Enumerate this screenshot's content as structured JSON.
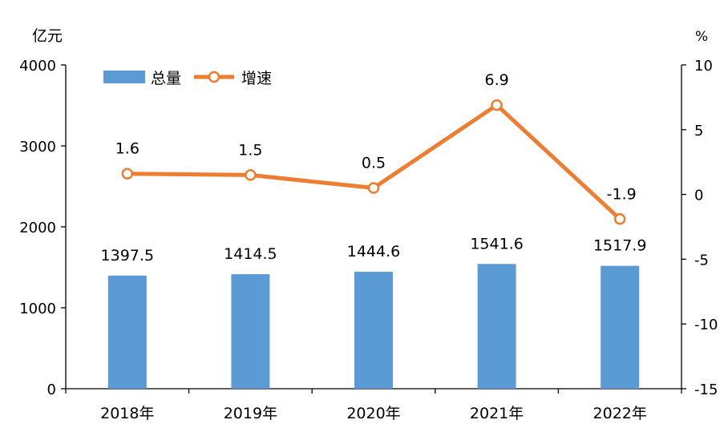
{
  "chart_data": {
    "type": "bar+line",
    "categories": [
      "2018年",
      "2019年",
      "2020年",
      "2021年",
      "2022年"
    ],
    "series": [
      {
        "name": "总量",
        "type": "bar",
        "axis": "left",
        "values": [
          1397.5,
          1414.5,
          1444.6,
          1541.6,
          1517.9
        ]
      },
      {
        "name": "增速",
        "type": "line",
        "axis": "right",
        "values": [
          1.6,
          1.5,
          0.5,
          6.9,
          -1.9
        ]
      }
    ],
    "data_labels": {
      "bars": [
        "1397.5",
        "1414.5",
        "1444.6",
        "1541.6",
        "1517.9"
      ],
      "line": [
        "1.6",
        "1.5",
        "0.5",
        "6.9",
        "-1.9"
      ]
    },
    "y_left": {
      "unit": "亿元",
      "lim": [
        0,
        4000
      ],
      "ticks": [
        0,
        1000,
        2000,
        3000,
        4000
      ]
    },
    "y_right": {
      "unit": "%",
      "lim": [
        -15,
        10
      ],
      "ticks": [
        -15,
        -10,
        -5,
        0,
        5,
        10
      ]
    },
    "legend": {
      "position": "top-left",
      "items": [
        "总量",
        "增速"
      ]
    },
    "grid": false,
    "colors": {
      "bar": "#5b9bd5",
      "line": "#ed7d31",
      "marker_fill": "#ffffff",
      "axis": "#000000"
    }
  }
}
